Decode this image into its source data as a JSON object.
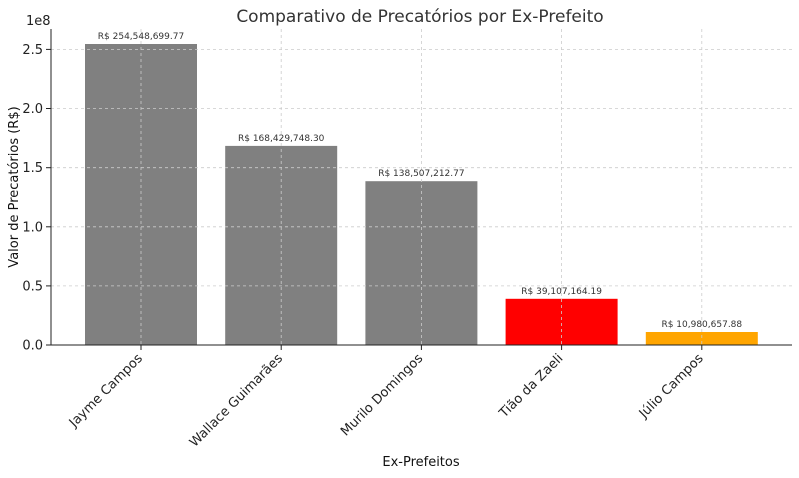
{
  "chart_data": {
    "type": "bar",
    "title": "Comparativo de Precatórios por Ex-Prefeito",
    "xlabel": "Ex-Prefeitos",
    "ylabel": "Valor de Precatórios (R$)",
    "y_offset_label": "1e8",
    "categories": [
      "Jayme Campos",
      "Wallace Guimarães",
      "Murilo Domingos",
      "Tião da Zaeli",
      "Júlio Campos"
    ],
    "values": [
      254548699.77,
      168429748.3,
      138507212.77,
      39107164.19,
      10980657.88
    ],
    "data_labels": [
      "R$ 254,548,699.77",
      "R$ 168,429,748.30",
      "R$ 138,507,212.77",
      "R$ 39,107,164.19",
      "R$ 10,980,657.88"
    ],
    "bar_colors": [
      "#808080",
      "#808080",
      "#808080",
      "#ff0000",
      "#ffa500"
    ],
    "ylim": [
      0,
      267276134.76
    ],
    "yticks": [
      0,
      50000000,
      100000000,
      150000000,
      200000000,
      250000000
    ],
    "ytick_labels": [
      "0.0",
      "0.5",
      "1.0",
      "1.5",
      "2.0",
      "2.5"
    ],
    "grid": true
  }
}
